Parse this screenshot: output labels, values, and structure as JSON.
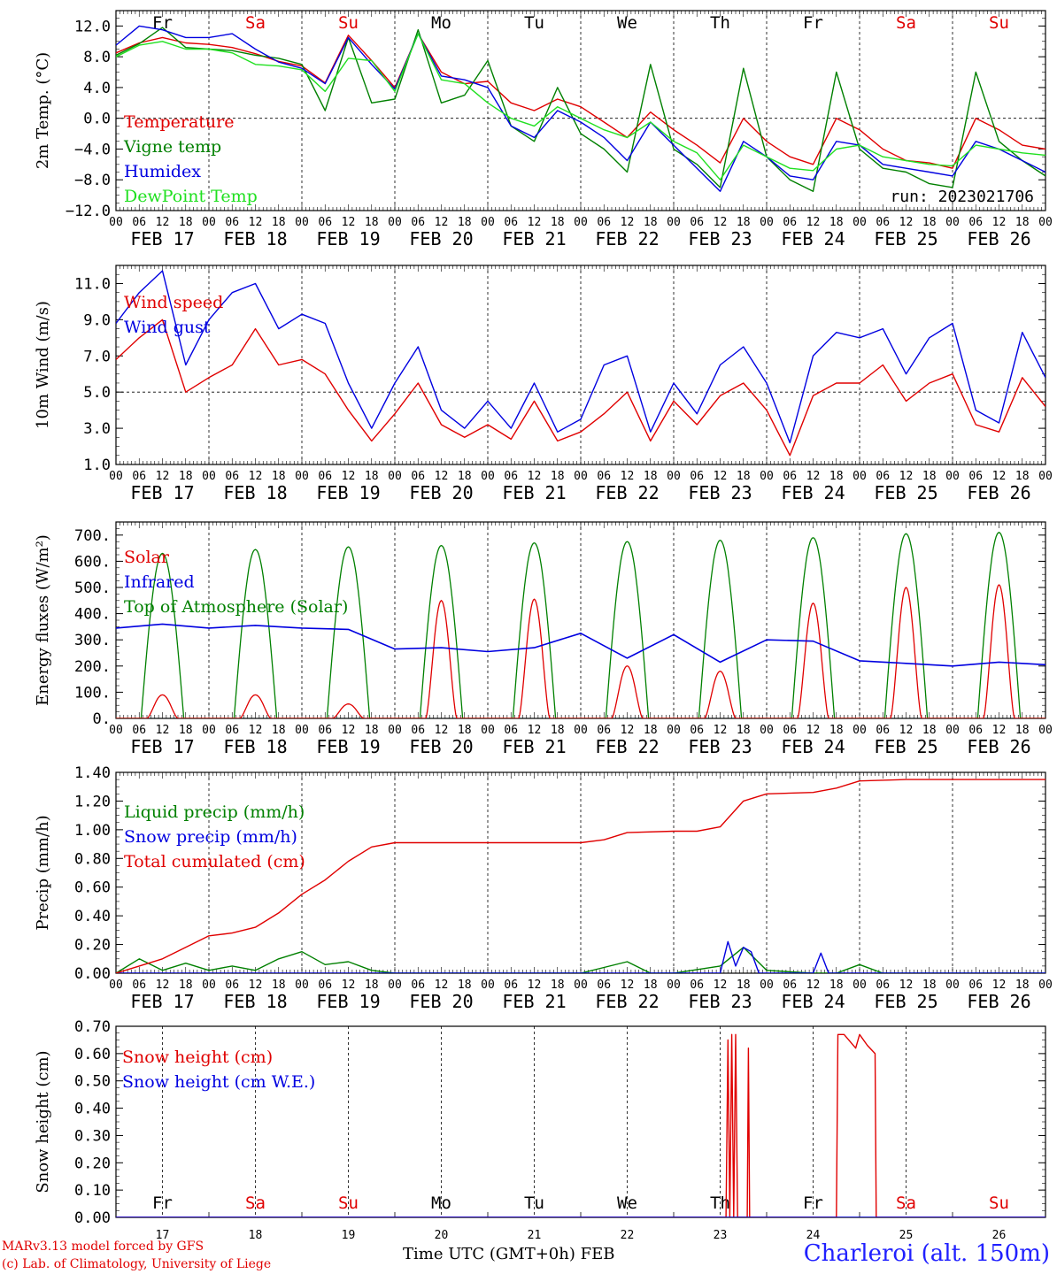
{
  "colors": {
    "red": "#e00000",
    "green": "#008000",
    "blue": "#0000e0",
    "lightgreen": "#20e020",
    "axis": "#000000",
    "station": "#2020ff"
  },
  "days": {
    "abbrev": [
      "Fr",
      "Sa",
      "Su",
      "Mo",
      "Tu",
      "We",
      "Th",
      "Fr",
      "Sa",
      "Su"
    ],
    "abbrev_colors": [
      "black",
      "red",
      "red",
      "black",
      "black",
      "black",
      "black",
      "black",
      "red",
      "red"
    ],
    "date_labels": [
      "FEB 17",
      "FEB 18",
      "FEB 19",
      "FEB 20",
      "FEB 21",
      "FEB 22",
      "FEB 23",
      "FEB 24",
      "FEB 25",
      "FEB 26"
    ],
    "day_numbers": [
      "17",
      "18",
      "19",
      "20",
      "21",
      "22",
      "23",
      "24",
      "25",
      "26"
    ],
    "hour_ticks": [
      "00",
      "06",
      "12",
      "18"
    ],
    "final_hour": "00"
  },
  "footer": {
    "credit1": "MARv3.13 model forced by GFS",
    "credit2": "(c) Lab. of Climatology, University of Liege",
    "xtitle": "Time UTC (GMT+0h) FEB",
    "station": "Charleroi (alt. 150m)"
  },
  "chart_data": [
    {
      "type": "line",
      "ylabel": "2m Temp. (°C)",
      "ylim": [
        -12,
        14
      ],
      "yticks": [
        "12.0",
        "8.0",
        "4.0",
        "0.0",
        "−4.0",
        "−8.0",
        "−12.0"
      ],
      "ytick_values": [
        12,
        8,
        4,
        0,
        -4,
        -8,
        -12
      ],
      "ref_line": 0,
      "annotation": "run: 2023021706",
      "x": [
        0,
        6,
        12,
        18,
        24,
        30,
        36,
        42,
        48,
        54,
        60,
        66,
        72,
        78,
        84,
        90,
        96,
        102,
        108,
        114,
        120,
        126,
        132,
        138,
        144,
        150,
        156,
        162,
        168,
        174,
        180,
        186,
        192,
        198,
        204,
        210,
        216,
        222,
        228,
        234,
        240
      ],
      "series": [
        {
          "name": "Temperature",
          "color": "red",
          "values": [
            8.5,
            9.8,
            10.5,
            9.8,
            9.6,
            9.2,
            8.4,
            7.4,
            6.8,
            4.6,
            10.8,
            7.5,
            4.0,
            11.0,
            6.0,
            4.5,
            4.8,
            2.0,
            1.0,
            2.5,
            1.5,
            -0.5,
            -2.5,
            0.8,
            -1.5,
            -3.5,
            -5.8,
            0.0,
            -3.0,
            -5.0,
            -6.0,
            0.0,
            -1.5,
            -4.0,
            -5.5,
            -5.8,
            -6.5,
            0.0,
            -1.5,
            -3.5,
            -4.0
          ]
        },
        {
          "name": "Vigne temp",
          "color": "green",
          "values": [
            8.2,
            9.7,
            11.8,
            9.2,
            9.0,
            8.8,
            8.2,
            7.8,
            7.0,
            1.0,
            10.5,
            2.0,
            2.5,
            11.5,
            2.0,
            3.0,
            7.5,
            -1.0,
            -3.0,
            4.0,
            -2.0,
            -4.0,
            -7.0,
            7.0,
            -4.0,
            -6.0,
            -9.0,
            6.5,
            -5.0,
            -8.0,
            -9.5,
            6.0,
            -4.0,
            -6.5,
            -7.0,
            -8.5,
            -9.0,
            6.0,
            -3.0,
            -5.5,
            -7.5
          ]
        },
        {
          "name": "Humidex",
          "color": "blue",
          "values": [
            9.5,
            12.0,
            11.5,
            10.5,
            10.5,
            11.0,
            9.0,
            7.3,
            6.5,
            4.5,
            10.5,
            7.0,
            3.8,
            11.0,
            5.5,
            5.0,
            4.0,
            -1.0,
            -2.5,
            1.0,
            -0.5,
            -2.5,
            -5.5,
            -0.5,
            -3.5,
            -6.5,
            -9.5,
            -3.0,
            -5.0,
            -7.5,
            -8.0,
            -3.0,
            -3.5,
            -6.0,
            -6.5,
            -7.0,
            -7.5,
            -3.0,
            -4.0,
            -5.5,
            -7.0
          ]
        },
        {
          "name": "DewPoint Temp",
          "color": "lightgreen",
          "values": [
            8.0,
            9.5,
            10.0,
            9.0,
            9.0,
            8.5,
            7.0,
            6.8,
            6.3,
            3.5,
            7.8,
            7.5,
            3.5,
            11.0,
            5.0,
            4.5,
            2.0,
            0.0,
            -1.0,
            1.5,
            0.0,
            -1.5,
            -2.5,
            -0.5,
            -3.0,
            -4.5,
            -8.0,
            -3.5,
            -5.0,
            -6.5,
            -6.8,
            -4.0,
            -3.5,
            -5.0,
            -5.5,
            -6.0,
            -6.2,
            -3.5,
            -4.0,
            -4.5,
            -4.8
          ]
        }
      ]
    },
    {
      "type": "line",
      "ylabel": "10m Wind (m/s)",
      "ylim": [
        1,
        12
      ],
      "yticks": [
        "11.0",
        "9.0",
        "7.0",
        "5.0",
        "3.0",
        "1.0"
      ],
      "ytick_values": [
        11,
        9,
        7,
        5,
        3,
        1
      ],
      "ref_line": 5,
      "x": [
        0,
        6,
        12,
        18,
        24,
        30,
        36,
        42,
        48,
        54,
        60,
        66,
        72,
        78,
        84,
        90,
        96,
        102,
        108,
        114,
        120,
        126,
        132,
        138,
        144,
        150,
        156,
        162,
        168,
        174,
        180,
        186,
        192,
        198,
        204,
        210,
        216,
        222,
        228,
        234,
        240
      ],
      "series": [
        {
          "name": "Wind speed",
          "color": "red",
          "values": [
            6.8,
            8.0,
            9.0,
            5.0,
            5.8,
            6.5,
            8.5,
            6.5,
            6.8,
            6.0,
            4.0,
            2.3,
            3.8,
            5.5,
            3.2,
            2.5,
            3.2,
            2.4,
            4.5,
            2.3,
            2.8,
            3.8,
            5.0,
            2.3,
            4.5,
            3.2,
            4.8,
            5.5,
            4.0,
            1.5,
            4.8,
            5.5,
            5.5,
            6.5,
            4.5,
            5.5,
            6.0,
            3.2,
            2.8,
            5.8,
            4.2
          ]
        },
        {
          "name": "Wind gust",
          "color": "blue",
          "values": [
            8.8,
            10.5,
            11.7,
            6.5,
            9.0,
            10.5,
            11.0,
            8.5,
            9.3,
            8.8,
            5.5,
            3.0,
            5.5,
            7.5,
            4.0,
            3.0,
            4.5,
            3.0,
            5.5,
            2.8,
            3.5,
            6.5,
            7.0,
            2.8,
            5.5,
            3.8,
            6.5,
            7.5,
            5.5,
            2.2,
            7.0,
            8.3,
            8.0,
            8.5,
            6.0,
            8.0,
            8.8,
            4.0,
            3.3,
            8.3,
            5.8
          ]
        }
      ]
    },
    {
      "type": "line",
      "ylabel": "Energy fluxes (W/m²)",
      "ylim": [
        0,
        750
      ],
      "yticks": [
        "700.",
        "600.",
        "500.",
        "400.",
        "300.",
        "200.",
        "100.",
        "0."
      ],
      "ytick_values": [
        700,
        600,
        500,
        400,
        300,
        200,
        100,
        0
      ],
      "toa_peaks": [
        630,
        645,
        655,
        660,
        670,
        675,
        680,
        690,
        705,
        710
      ],
      "solar_peaks": [
        90,
        90,
        55,
        450,
        455,
        200,
        180,
        440,
        500,
        510
      ],
      "series": [
        {
          "name": "Solar",
          "color": "red"
        },
        {
          "name": "Infrared",
          "color": "blue",
          "x": [
            0,
            12,
            24,
            36,
            48,
            60,
            72,
            84,
            96,
            108,
            120,
            132,
            144,
            156,
            168,
            180,
            192,
            204,
            216,
            228,
            240
          ],
          "values": [
            345,
            360,
            345,
            355,
            345,
            340,
            265,
            270,
            255,
            270,
            325,
            230,
            320,
            215,
            300,
            295,
            220,
            210,
            200,
            215,
            205
          ]
        },
        {
          "name": "Top of Atmosphere (Solar)",
          "color": "green"
        }
      ]
    },
    {
      "type": "line",
      "ylabel": "Precip (mm/h)",
      "ylim": [
        0,
        1.4
      ],
      "yticks": [
        "1.40",
        "1.20",
        "1.00",
        "0.80",
        "0.60",
        "0.40",
        "0.20",
        "0.00"
      ],
      "ytick_values": [
        1.4,
        1.2,
        1.0,
        0.8,
        0.6,
        0.4,
        0.2,
        0.0
      ],
      "series": [
        {
          "name": "Liquid precip (mm/h)",
          "color": "green",
          "x": [
            0,
            6,
            12,
            18,
            24,
            30,
            36,
            42,
            48,
            54,
            60,
            66,
            72,
            120,
            132,
            138,
            144,
            156,
            162,
            168,
            180,
            186,
            192,
            198,
            204,
            240
          ],
          "values": [
            0.0,
            0.1,
            0.02,
            0.07,
            0.02,
            0.05,
            0.02,
            0.1,
            0.15,
            0.06,
            0.08,
            0.02,
            0.0,
            0.0,
            0.08,
            0.0,
            0.0,
            0.05,
            0.18,
            0.02,
            0.0,
            0.0,
            0.06,
            0.0,
            0.0,
            0.0
          ]
        },
        {
          "name": "Snow precip (mm/h)",
          "color": "blue",
          "x": [
            0,
            156,
            158,
            160,
            162,
            164,
            166,
            180,
            182,
            184,
            186,
            240
          ],
          "values": [
            0.0,
            0.0,
            0.22,
            0.05,
            0.18,
            0.15,
            0.0,
            0.0,
            0.14,
            0.0,
            0.0,
            0.0
          ]
        },
        {
          "name": "Total cumulated (cm)",
          "color": "red",
          "x": [
            0,
            6,
            12,
            18,
            24,
            30,
            36,
            42,
            48,
            54,
            60,
            66,
            72,
            84,
            96,
            108,
            120,
            126,
            132,
            144,
            150,
            156,
            162,
            168,
            180,
            186,
            192,
            204,
            216,
            228,
            240
          ],
          "values": [
            0.0,
            0.05,
            0.1,
            0.18,
            0.26,
            0.28,
            0.32,
            0.42,
            0.55,
            0.65,
            0.78,
            0.88,
            0.91,
            0.91,
            0.91,
            0.91,
            0.91,
            0.93,
            0.98,
            0.99,
            0.99,
            1.02,
            1.2,
            1.25,
            1.26,
            1.29,
            1.34,
            1.35,
            1.35,
            1.35,
            1.35
          ]
        }
      ]
    },
    {
      "type": "line",
      "ylabel": "Snow height (cm)",
      "ylim": [
        0,
        0.7
      ],
      "yticks": [
        "0.70",
        "0.60",
        "0.50",
        "0.40",
        "0.30",
        "0.20",
        "0.10",
        "0.00"
      ],
      "ytick_values": [
        0.7,
        0.6,
        0.5,
        0.4,
        0.3,
        0.2,
        0.1,
        0.0
      ],
      "series": [
        {
          "name": "Snow height (cm)",
          "color": "red",
          "x": [
            0,
            157.5,
            158,
            158.5,
            159,
            159.5,
            160,
            160.5,
            161,
            163,
            163.3,
            163.6,
            186,
            186.4,
            188,
            191,
            192,
            194,
            196,
            196.3,
            240
          ],
          "values": [
            0,
            0,
            0.65,
            0,
            0.67,
            0,
            0.67,
            0,
            0,
            0,
            0.62,
            0,
            0,
            0.67,
            0.67,
            0.62,
            0.67,
            0.63,
            0.6,
            0,
            0
          ]
        },
        {
          "name": "Snow height (cm W.E.)",
          "color": "blue",
          "x": [
            0,
            240
          ],
          "values": [
            0,
            0
          ]
        }
      ]
    }
  ]
}
